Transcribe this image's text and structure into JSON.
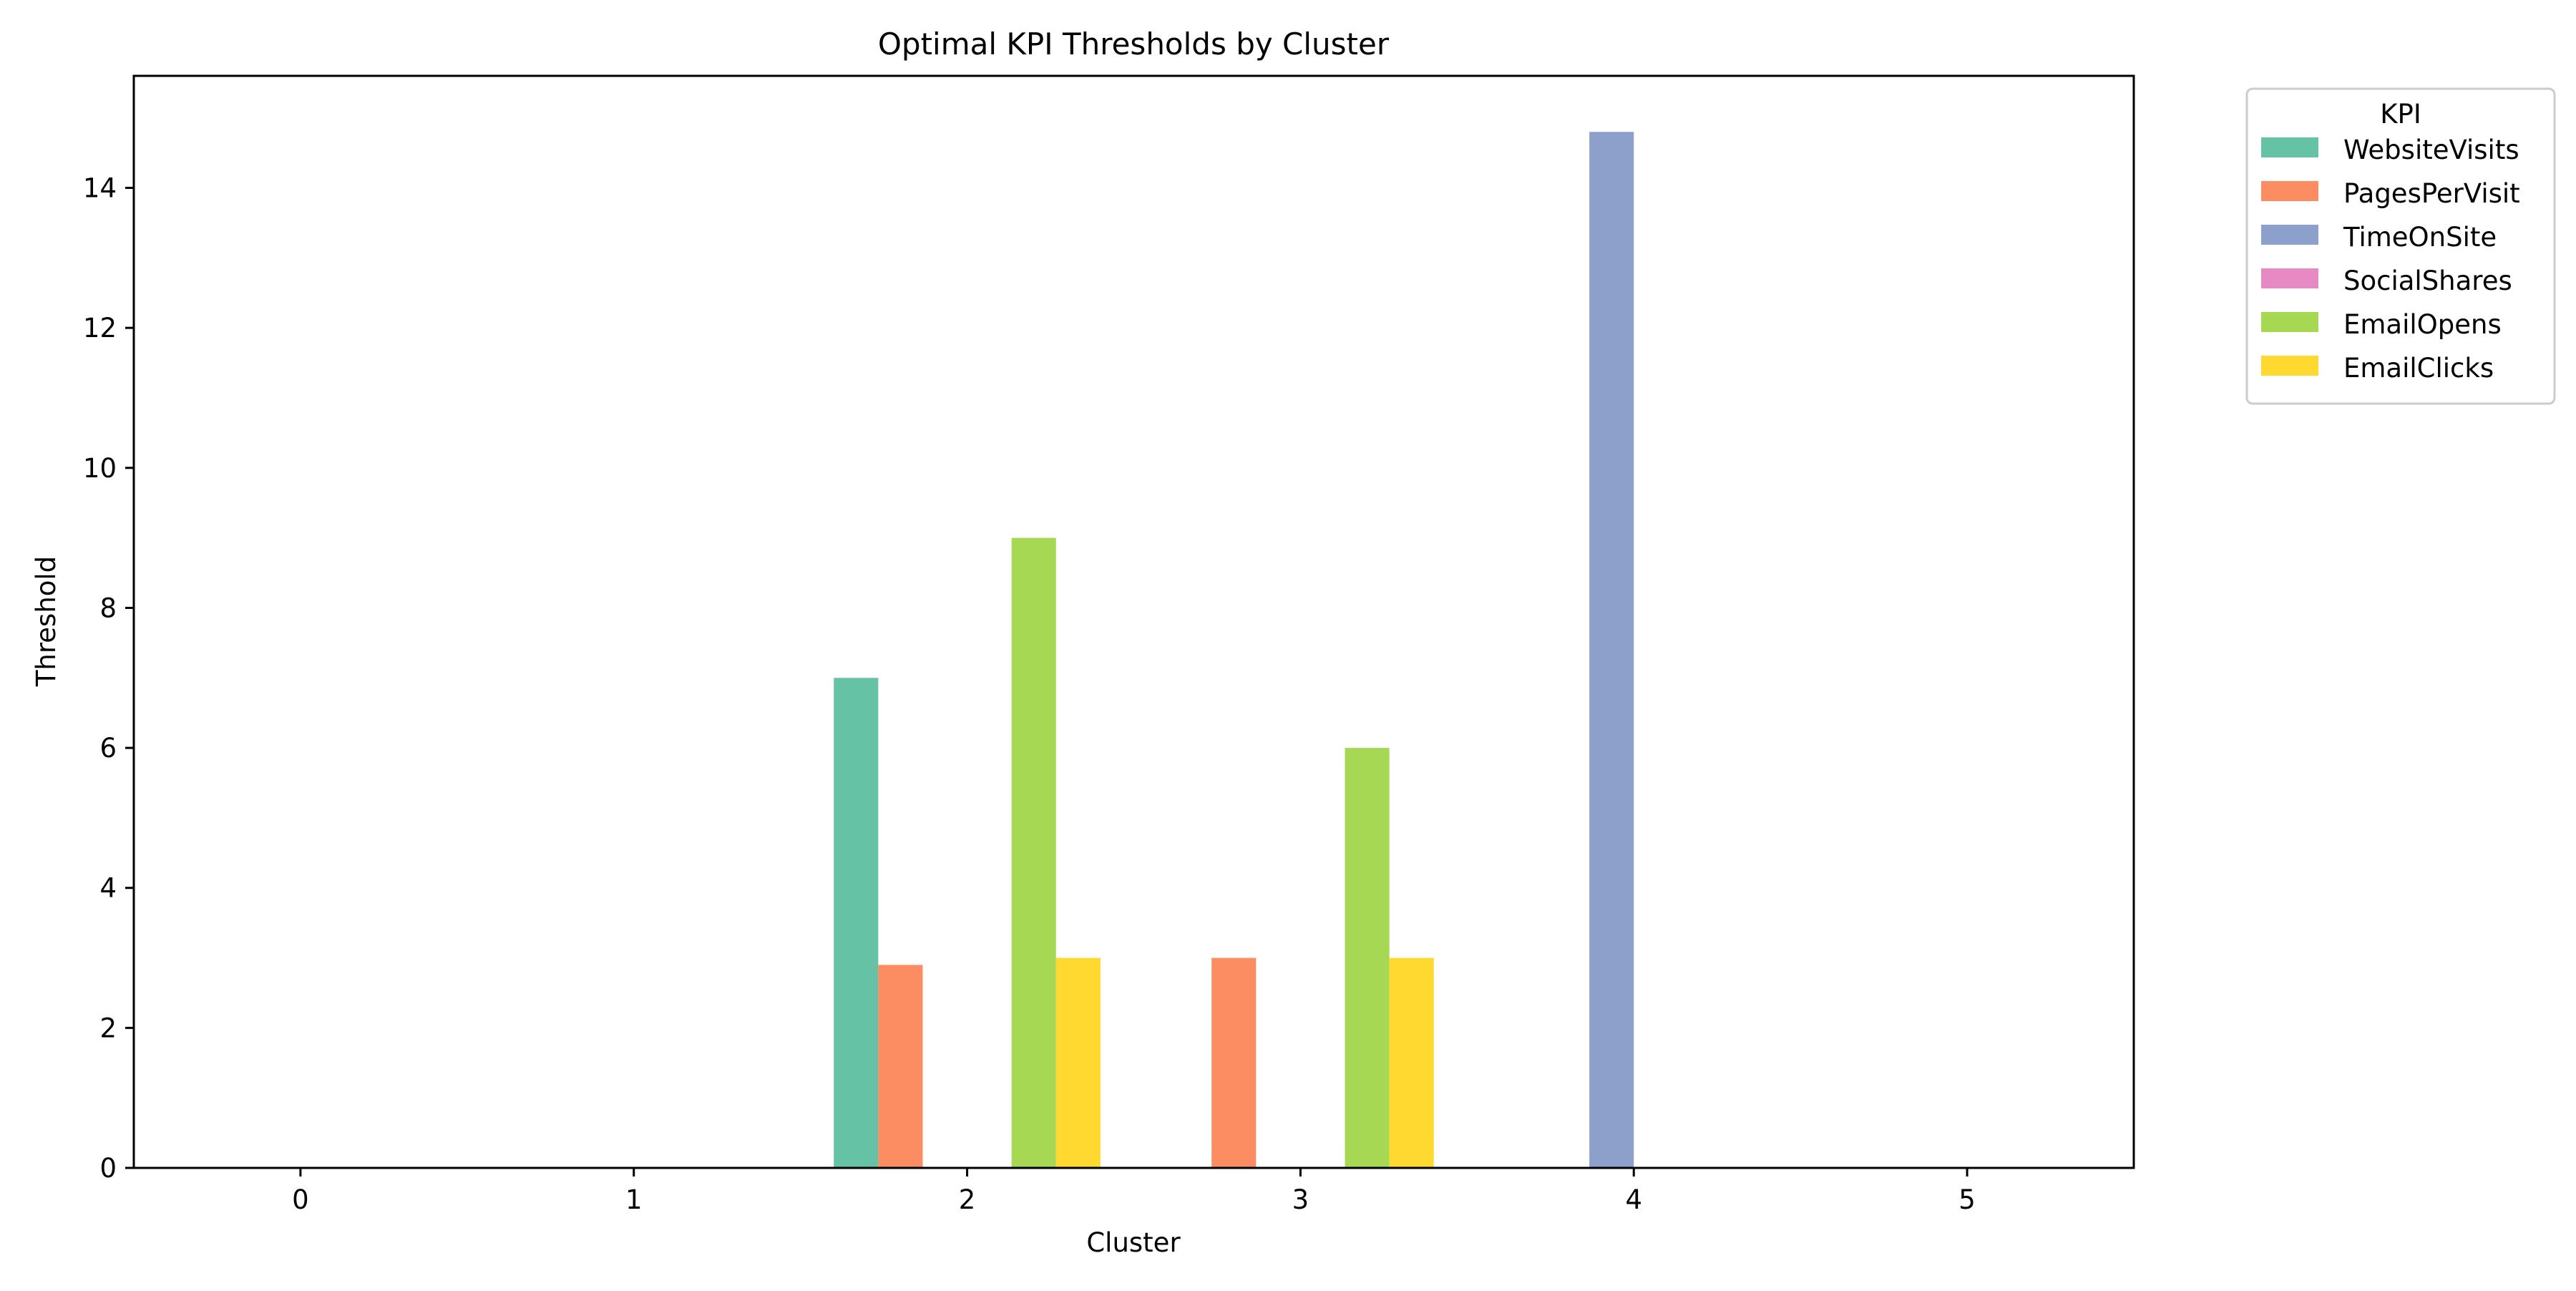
{
  "chart_data": {
    "type": "bar",
    "title": "Optimal KPI Thresholds by Cluster",
    "xlabel": "Cluster",
    "ylabel": "Threshold",
    "categories": [
      "0",
      "1",
      "2",
      "3",
      "4",
      "5"
    ],
    "ylim": [
      0,
      15.6
    ],
    "yticks": [
      0,
      2,
      4,
      6,
      8,
      10,
      12,
      14
    ],
    "grid": false,
    "legend": {
      "title": "KPI",
      "placement": "outside-top-right"
    },
    "series": [
      {
        "name": "WebsiteVisits",
        "color": "#66c2a5",
        "values": [
          null,
          null,
          7.0,
          null,
          null,
          null
        ]
      },
      {
        "name": "PagesPerVisit",
        "color": "#fc8d62",
        "values": [
          null,
          null,
          2.9,
          3.0,
          null,
          null
        ]
      },
      {
        "name": "TimeOnSite",
        "color": "#8da0cb",
        "values": [
          null,
          null,
          null,
          null,
          14.8,
          null
        ]
      },
      {
        "name": "SocialShares",
        "color": "#e78ac3",
        "values": [
          null,
          null,
          null,
          null,
          null,
          null
        ]
      },
      {
        "name": "EmailOpens",
        "color": "#a6d854",
        "values": [
          null,
          null,
          9.0,
          6.0,
          null,
          null
        ]
      },
      {
        "name": "EmailClicks",
        "color": "#ffd92f",
        "values": [
          null,
          null,
          3.0,
          3.0,
          null,
          null
        ]
      }
    ]
  }
}
